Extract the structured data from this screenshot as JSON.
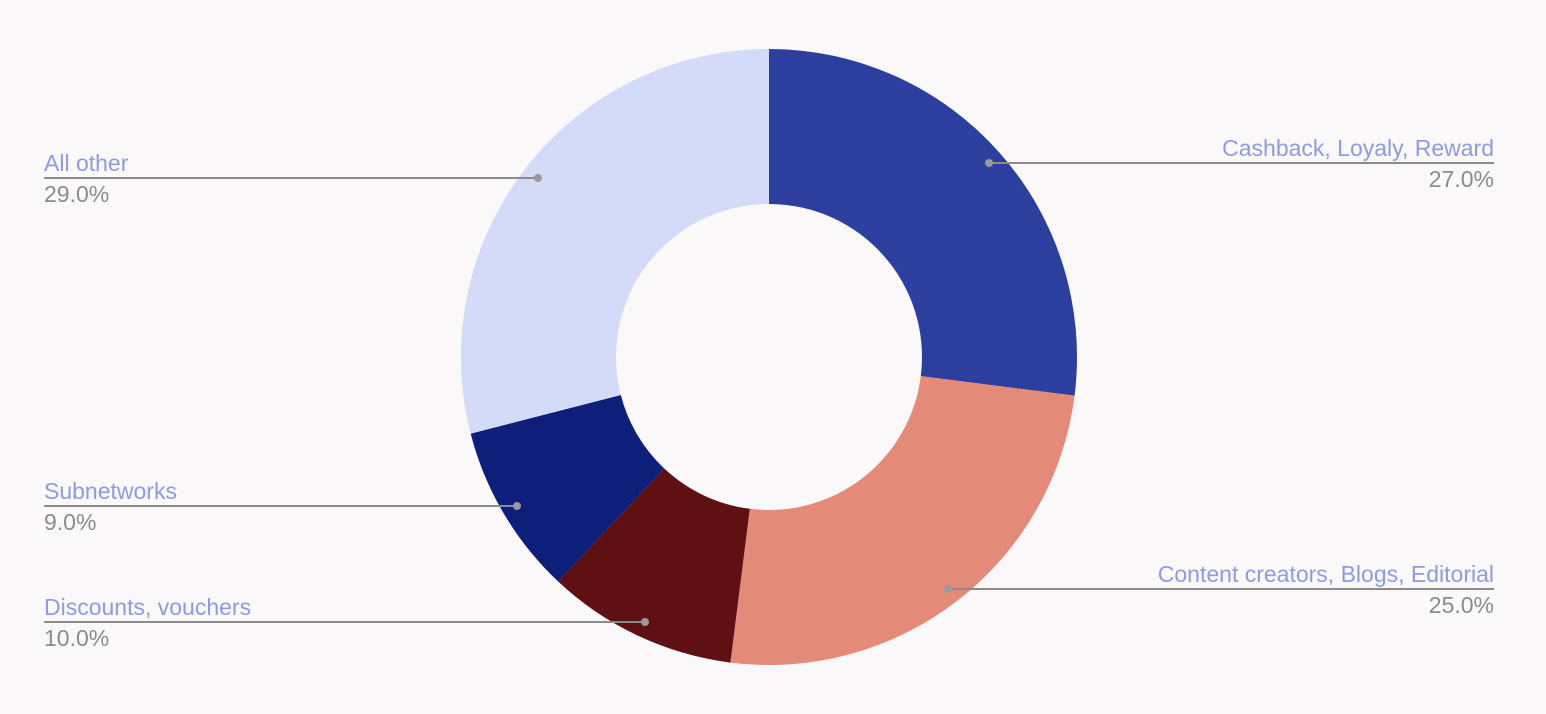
{
  "chart_data": {
    "type": "pie",
    "donut": true,
    "title": "",
    "slices": [
      {
        "label": "Cashback, Loyaly, Reward",
        "value": 27.0,
        "display": "27.0%",
        "color": "#2c3e9e"
      },
      {
        "label": "Content creators, Blogs, Editorial",
        "value": 25.0,
        "display": "25.0%",
        "color": "#e38a78"
      },
      {
        "label": "Discounts, vouchers",
        "value": 10.0,
        "display": "10.0%",
        "color": "#5f1013"
      },
      {
        "label": "Subnetworks",
        "value": 9.0,
        "display": "9.0%",
        "color": "#0d1f7a"
      },
      {
        "label": "All other",
        "value": 29.0,
        "display": "29.0%",
        "color": "#d4dbf9"
      }
    ],
    "label_color": "#8e9be0",
    "value_color": "#8c8c8c",
    "legend": "none"
  }
}
